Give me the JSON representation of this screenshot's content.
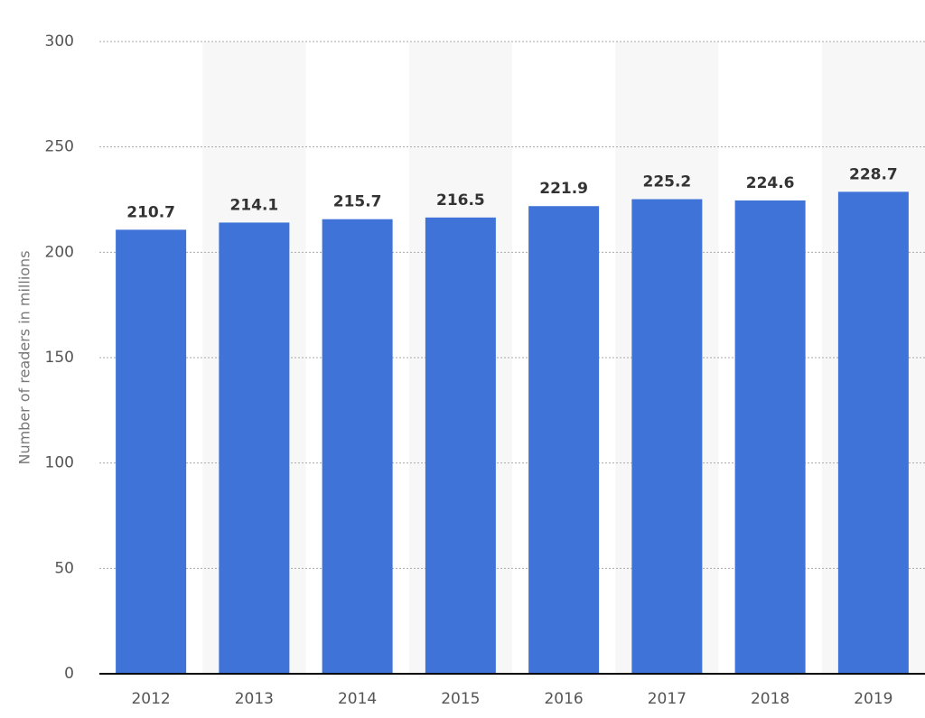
{
  "chart_data": {
    "type": "bar",
    "y_label": "Number of readers in millions",
    "categories": [
      "2012",
      "2013",
      "2014",
      "2015",
      "2016",
      "2017",
      "2018",
      "2019"
    ],
    "values": [
      210.7,
      214.1,
      215.7,
      216.5,
      221.9,
      225.2,
      224.6,
      228.7
    ],
    "color": "#3f73d8",
    "ylim": [
      0,
      300
    ],
    "yticks": [
      0,
      50,
      100,
      150,
      200,
      250,
      300
    ],
    "grid": true
  }
}
